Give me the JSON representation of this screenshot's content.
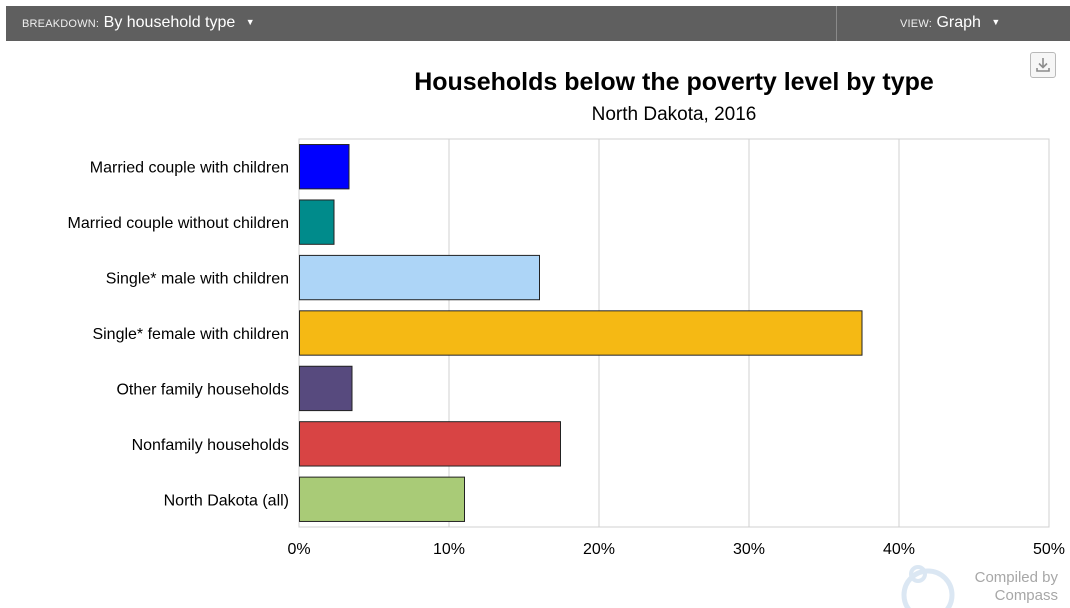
{
  "toolbar": {
    "breakdown_label": "Breakdown:",
    "breakdown_value": "By household type",
    "view_label": "View:",
    "view_value": "Graph",
    "caret": "▼"
  },
  "icons": {
    "download": "download-icon",
    "dropdown": "caret-down-icon",
    "watermark_logo": "compass-icon"
  },
  "watermark": {
    "line1": "Compiled by",
    "line2": "Compass"
  },
  "chart_data": {
    "type": "bar",
    "orientation": "horizontal",
    "title": "Households below the poverty level by type",
    "subtitle": "North Dakota, 2016",
    "categories": [
      "Married couple with children",
      "Married couple without children",
      "Single* male with children",
      "Single* female with children",
      "Other family households",
      "Nonfamily households",
      "North Dakota (all)"
    ],
    "values": [
      3.3,
      2.3,
      16.0,
      37.5,
      3.5,
      17.4,
      11.0
    ],
    "colors": [
      "#0000ff",
      "#008b8b",
      "#add5f7",
      "#f5b914",
      "#574a7e",
      "#d84444",
      "#a9cb77"
    ],
    "xlim": [
      0,
      50
    ],
    "xticks": [
      "0%",
      "10%",
      "20%",
      "30%",
      "40%",
      "50%"
    ],
    "grid": true,
    "xlabel": "",
    "ylabel": ""
  }
}
